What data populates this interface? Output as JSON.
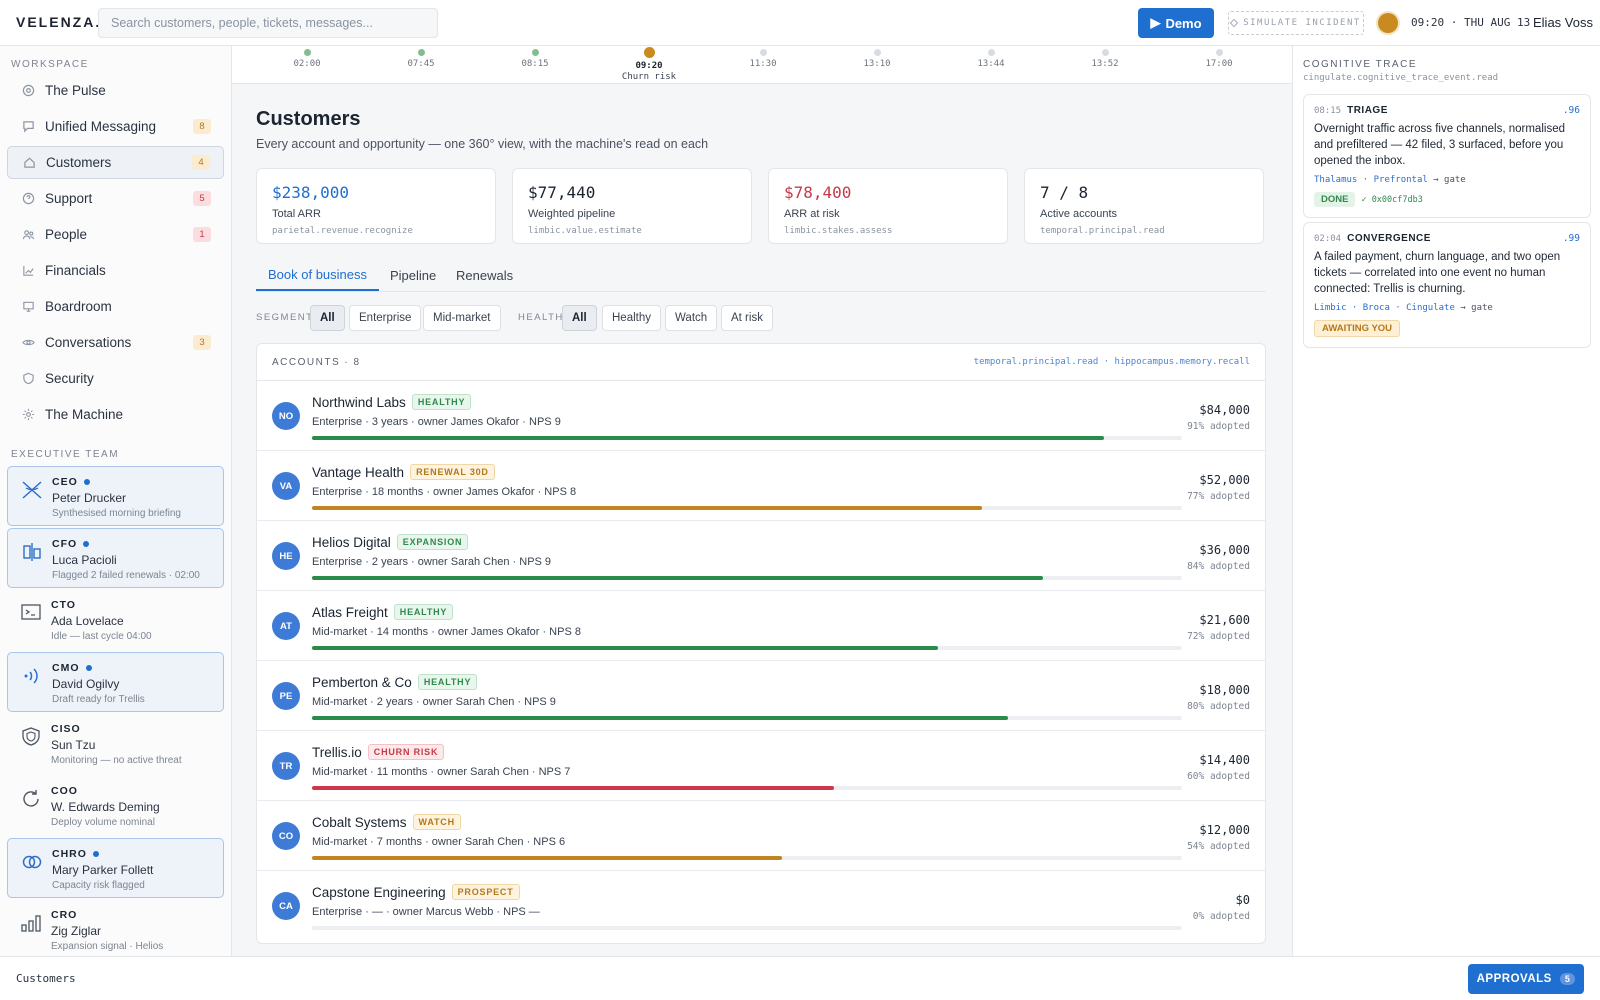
{
  "app": {
    "logo": "VELENZA.",
    "user": "Elias Voss",
    "clock": "09:20 · THU AUG 13"
  },
  "search": {
    "placeholder": "Search customers, people, tickets, messages..."
  },
  "header": {
    "demo_label": "Demo",
    "simulate_label": "SIMULATE INCIDENT"
  },
  "sidebar": {
    "workspace_label": "WORKSPACE",
    "items": [
      {
        "label": "The Pulse",
        "icon": "pulse-icon",
        "badge": ""
      },
      {
        "label": "Unified Messaging",
        "icon": "message-icon",
        "badge": "8"
      },
      {
        "label": "Customers",
        "icon": "home-icon",
        "badge": "4"
      },
      {
        "label": "Support",
        "icon": "help-icon",
        "badge": "5"
      },
      {
        "label": "People",
        "icon": "people-icon",
        "badge": "1"
      },
      {
        "label": "Financials",
        "icon": "chart-icon",
        "badge": ""
      },
      {
        "label": "Boardroom",
        "icon": "monitor-icon",
        "badge": ""
      },
      {
        "label": "Conversations",
        "icon": "eye-icon",
        "badge": "3"
      },
      {
        "label": "Security",
        "icon": "shield-icon",
        "badge": ""
      },
      {
        "label": "The Machine",
        "icon": "gear-icon",
        "badge": ""
      }
    ],
    "exec_label": "EXECUTIVE TEAM",
    "executives": [
      {
        "role": "CEO",
        "name": "Peter Drucker",
        "status": "Synthesised morning briefing",
        "active": true
      },
      {
        "role": "CFO",
        "name": "Luca Pacioli",
        "status": "Flagged 2 failed renewals · 02:00",
        "active": true
      },
      {
        "role": "CTO",
        "name": "Ada Lovelace",
        "status": "Idle — last cycle 04:00",
        "active": false
      },
      {
        "role": "CMO",
        "name": "David Ogilvy",
        "status": "Draft ready for Trellis",
        "active": true
      },
      {
        "role": "CISO",
        "name": "Sun Tzu",
        "status": "Monitoring — no active threat",
        "active": false
      },
      {
        "role": "COO",
        "name": "W. Edwards Deming",
        "status": "Deploy volume nominal",
        "active": false
      },
      {
        "role": "CHRO",
        "name": "Mary Parker Follett",
        "status": "Capacity risk flagged",
        "active": true
      },
      {
        "role": "CRO",
        "name": "Zig Ziglar",
        "status": "Expansion signal · Helios",
        "active": false
      }
    ]
  },
  "timeline": {
    "points": [
      {
        "time": "02:00",
        "state": "done",
        "note": ""
      },
      {
        "time": "07:45",
        "state": "done",
        "note": ""
      },
      {
        "time": "08:15",
        "state": "done",
        "note": ""
      },
      {
        "time": "09:20",
        "state": "current",
        "note": "Churn risk"
      },
      {
        "time": "11:30",
        "state": "future",
        "note": ""
      },
      {
        "time": "13:10",
        "state": "future",
        "note": ""
      },
      {
        "time": "13:44",
        "state": "future",
        "note": ""
      },
      {
        "time": "13:52",
        "state": "future",
        "note": ""
      },
      {
        "time": "17:00",
        "state": "future",
        "note": ""
      }
    ]
  },
  "page": {
    "title": "Customers",
    "subtitle": "Every account and opportunity — one 360° view, with the machine's read on each"
  },
  "stats": [
    {
      "value": "$238,000",
      "label": "Total ARR",
      "fn": "parietal.revenue.recognize",
      "tone": "blue"
    },
    {
      "value": "$77,440",
      "label": "Weighted pipeline",
      "fn": "limbic.value.estimate",
      "tone": ""
    },
    {
      "value": "$78,400",
      "label": "ARR at risk",
      "fn": "limbic.stakes.assess",
      "tone": "red"
    },
    {
      "value": "7 / 8",
      "label": "Active accounts",
      "fn": "temporal.principal.read",
      "tone": ""
    }
  ],
  "tabs": [
    "Book of business",
    "Pipeline",
    "Renewals"
  ],
  "filters": {
    "segment_label": "SEGMENT",
    "segment": [
      "All",
      "Enterprise",
      "Mid-market"
    ],
    "health_label": "HEALTH",
    "health": [
      "All",
      "Healthy",
      "Watch",
      "At risk"
    ]
  },
  "accounts": {
    "title": "ACCOUNTS · 8",
    "fns": "temporal.principal.read · hippocampus.memory.recall",
    "rows": [
      {
        "initials": "NO",
        "name": "Northwind Labs",
        "tag": "HEALTHY",
        "tone": "healthy",
        "meta": "Enterprise · 3 years · owner James Okafor · NPS 9",
        "amount": "$84,000",
        "adopted": "91% adopted",
        "adoption": 0.91
      },
      {
        "initials": "VA",
        "name": "Vantage Health",
        "tag": "RENEWAL 30D",
        "tone": "amber",
        "meta": "Enterprise · 18 months · owner James Okafor · NPS 8",
        "amount": "$52,000",
        "adopted": "77% adopted",
        "adoption": 0.77
      },
      {
        "initials": "HE",
        "name": "Helios Digital",
        "tag": "EXPANSION",
        "tone": "healthy",
        "meta": "Enterprise · 2 years · owner Sarah Chen · NPS 9",
        "amount": "$36,000",
        "adopted": "84% adopted",
        "adoption": 0.84
      },
      {
        "initials": "AT",
        "name": "Atlas Freight",
        "tag": "HEALTHY",
        "tone": "healthy",
        "meta": "Mid-market · 14 months · owner James Okafor · NPS 8",
        "amount": "$21,600",
        "adopted": "72% adopted",
        "adoption": 0.72
      },
      {
        "initials": "PE",
        "name": "Pemberton & Co",
        "tag": "HEALTHY",
        "tone": "healthy",
        "meta": "Mid-market · 2 years · owner Sarah Chen · NPS 9",
        "amount": "$18,000",
        "adopted": "80% adopted",
        "adoption": 0.8
      },
      {
        "initials": "TR",
        "name": "Trellis.io",
        "tag": "CHURN RISK",
        "tone": "red",
        "meta": "Mid-market · 11 months · owner Sarah Chen · NPS 7",
        "amount": "$14,400",
        "adopted": "60% adopted",
        "adoption": 0.6
      },
      {
        "initials": "CO",
        "name": "Cobalt Systems",
        "tag": "WATCH",
        "tone": "amber",
        "meta": "Mid-market · 7 months · owner Sarah Chen · NPS 6",
        "amount": "$12,000",
        "adopted": "54% adopted",
        "adoption": 0.54
      },
      {
        "initials": "CA",
        "name": "Capstone Engineering",
        "tag": "PROSPECT",
        "tone": "amber",
        "meta": "Enterprise · — · owner Marcus Webb · NPS —",
        "amount": "$0",
        "adopted": "0% adopted",
        "adoption": 0
      }
    ]
  },
  "colors": {
    "healthy": "#2a8a4a",
    "amber": "#c08421",
    "red": "#d0364a",
    "accent": "#1f6fd1"
  },
  "trace": {
    "title": "COGNITIVE TRACE",
    "fn": "cingulate.cognitive_trace_event.read",
    "cards": [
      {
        "time": "08:15",
        "kind": "TRIAGE",
        "score": ".96",
        "body": "Overnight traffic across five channels, normalised and prefiltered — 42 filed, 3 surfaced, before you opened the inbox.",
        "path": "Thalamus · Prefrontal",
        "gate": "→ gate",
        "status": "DONE",
        "hash": "✓ 0x00cf7db3"
      },
      {
        "time": "02:04",
        "kind": "CONVERGENCE",
        "score": ".99",
        "body": "A failed payment, churn language, and two open tickets — correlated into one event no human connected: Trellis is churning.",
        "path": "Limbic · Broca · Cingulate",
        "gate": "→ gate",
        "status": "AWAITING YOU",
        "hash": ""
      }
    ]
  },
  "footer": {
    "crumb": "Customers",
    "approvals_label": "APPROVALS",
    "approvals_count": "5"
  }
}
